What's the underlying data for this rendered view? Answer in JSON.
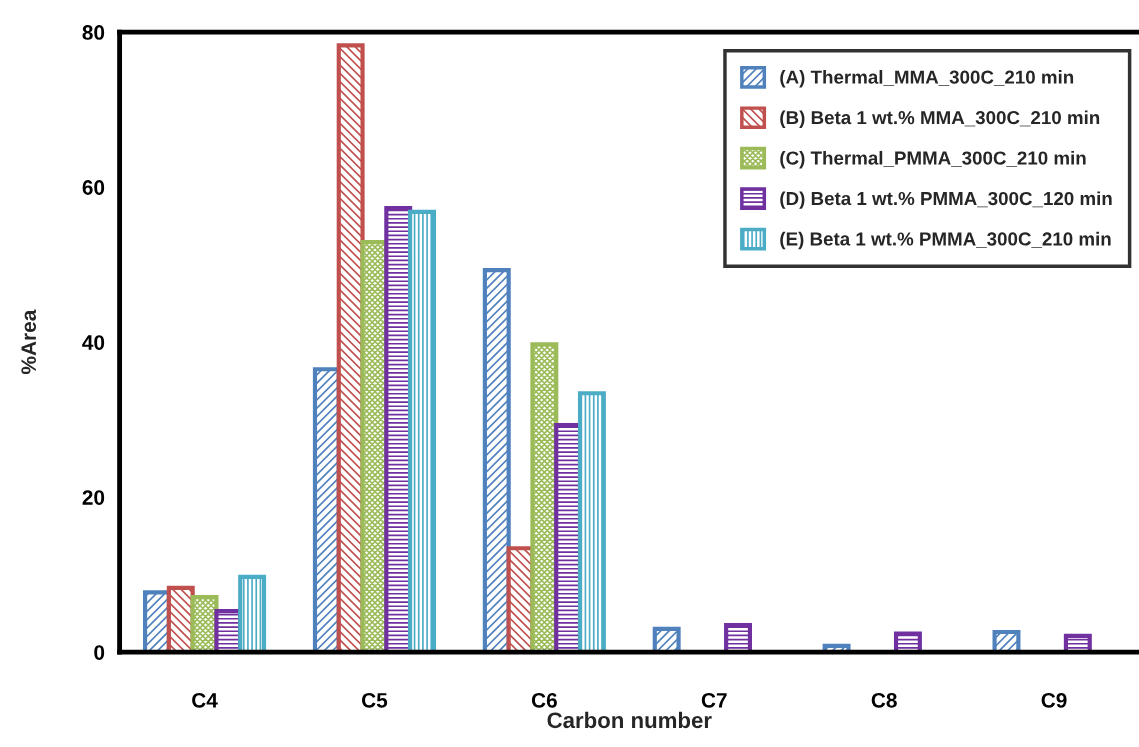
{
  "chart_data": {
    "type": "bar",
    "xlabel": "Carbon number",
    "ylabel": "%Area",
    "categories": [
      "C4",
      "C5",
      "C6",
      "C7",
      "C8",
      "C9"
    ],
    "series": [
      {
        "name": "(A) Thermal_MMA_300C_210 min",
        "color": "#4f81bd",
        "values": [
          7.7,
          36.5,
          49.3,
          3.0,
          0.8,
          2.6
        ]
      },
      {
        "name": "(B) Beta 1 wt.% MMA_300C_210 min",
        "color": "#c0504d",
        "values": [
          8.3,
          78.3,
          13.4,
          null,
          null,
          null
        ]
      },
      {
        "name": "(C) Thermal_PMMA_300C_210 min",
        "color": "#9bbb59",
        "values": [
          7.1,
          52.9,
          39.7,
          null,
          null,
          null
        ]
      },
      {
        "name": "(D) Beta 1 wt.% PMMA_300C_120 min",
        "color": "#7030a0",
        "values": [
          5.3,
          57.3,
          29.3,
          3.5,
          2.4,
          2.1
        ]
      },
      {
        "name": "(E) Beta 1 wt.% PMMA_300C_210 min",
        "color": "#4bacc6",
        "values": [
          9.7,
          56.8,
          33.4,
          null,
          null,
          null
        ]
      }
    ],
    "ylim": [
      0,
      80
    ],
    "yticks": [
      0,
      20,
      40,
      60,
      80
    ],
    "grid": false,
    "legend": "top right"
  }
}
